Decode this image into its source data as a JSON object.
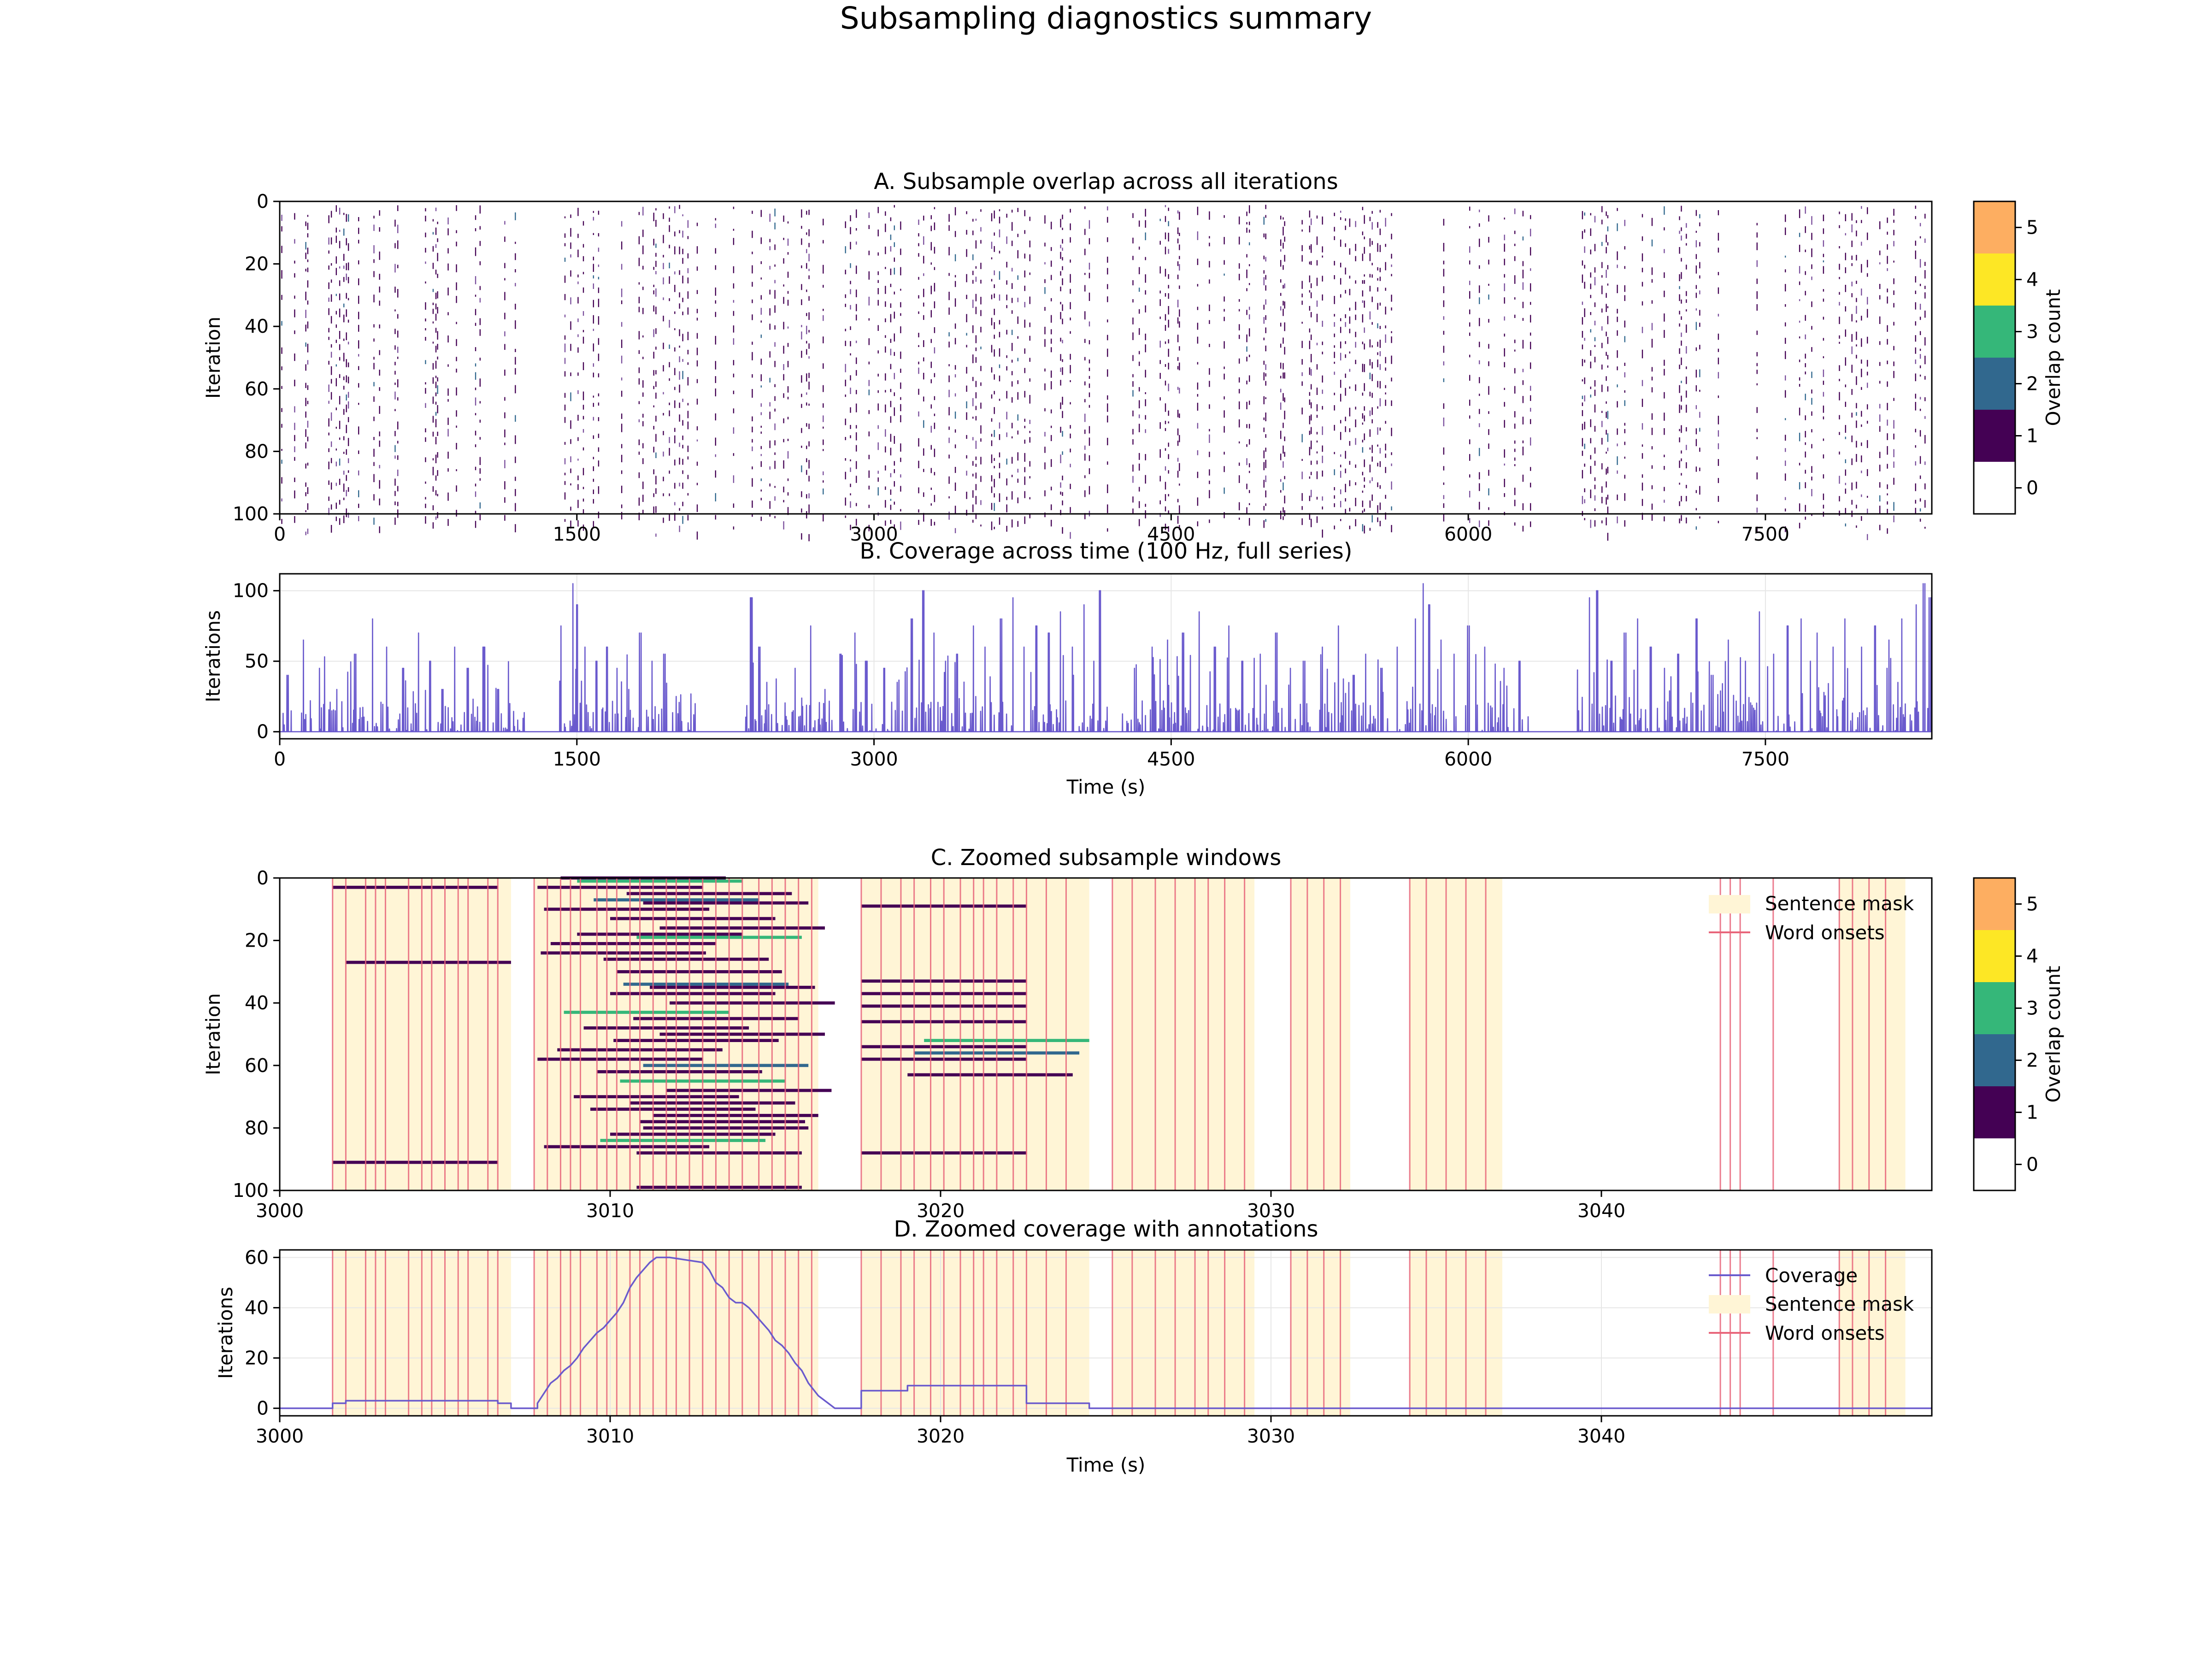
{
  "figure": {
    "suptitle": "Subsampling diagnostics summary"
  },
  "chart_data": [
    {
      "id": "A",
      "type": "heatmap",
      "title": "A. Subsample overlap across all iterations",
      "xlabel": "",
      "ylabel": "Iteration",
      "xlim": [
        0,
        8340
      ],
      "ylim": [
        100,
        0
      ],
      "xticks": [
        "0",
        "1500",
        "3000",
        "4500",
        "6000",
        "7500"
      ],
      "yticks": [
        "0",
        "20",
        "40",
        "60",
        "80",
        "100"
      ],
      "colorbar": {
        "label": "Overlap count",
        "ticks": [
          "0",
          "1",
          "2",
          "3",
          "4",
          "5"
        ],
        "colors": [
          "#ffffff",
          "#440154",
          "#31688e",
          "#35b779",
          "#fde725",
          "#fdae61"
        ]
      },
      "dense_time_ranges_s": [
        [
          0,
          1250
        ],
        [
          1400,
          2100
        ],
        [
          2350,
          4180
        ],
        [
          4250,
          5650
        ],
        [
          5650,
          6320
        ],
        [
          6550,
          8340
        ]
      ],
      "sparse_time_ranges_s": [
        [
          2100,
          2350
        ],
        [
          6320,
          6550
        ]
      ]
    },
    {
      "id": "B",
      "type": "line",
      "title": "B. Coverage across time (100 Hz, full series)",
      "xlabel": "Time (s)",
      "ylabel": "Iterations",
      "xlim": [
        0,
        8340
      ],
      "ylim": [
        -5,
        112
      ],
      "xticks": [
        "0",
        "1500",
        "3000",
        "4500",
        "6000",
        "7500"
      ],
      "yticks": [
        "0",
        "50",
        "100"
      ],
      "color": "#6a5acd",
      "peaks": {
        "x": [
          40,
          120,
          200,
          290,
          380,
          470,
          540,
          620,
          700,
          760,
          820,
          880,
          950,
          1030,
          1100,
          1160,
          1260,
          1420,
          1480,
          1500,
          1540,
          1600,
          1650,
          1700,
          1760,
          1820,
          1880,
          1940,
          2000,
          2150,
          2380,
          2420,
          2460,
          2600,
          2680,
          2750,
          2830,
          2900,
          2960,
          3050,
          3120,
          3190,
          3250,
          3300,
          3360,
          3420,
          3500,
          3560,
          3640,
          3700,
          3760,
          3820,
          3880,
          3940,
          4000,
          4060,
          4110,
          4140,
          4310,
          4400,
          4480,
          4560,
          4640,
          4720,
          4790,
          4860,
          4950,
          5030,
          5100,
          5170,
          5260,
          5340,
          5420,
          5480,
          5560,
          5640,
          5730,
          5770,
          5800,
          5860,
          5930,
          6000,
          6080,
          6180,
          6260,
          6330,
          6610,
          6650,
          6720,
          6790,
          6850,
          6920,
          6990,
          7060,
          7150,
          7230,
          7310,
          7400,
          7470,
          7540,
          7610,
          7680,
          7760,
          7840,
          7900,
          7980,
          8050,
          8120,
          8190,
          8260,
          8300,
          8330
        ],
        "y": [
          40,
          65,
          45,
          30,
          55,
          80,
          60,
          45,
          70,
          50,
          30,
          60,
          45,
          60,
          30,
          20,
          40,
          75,
          105,
          90,
          60,
          50,
          60,
          45,
          30,
          70,
          50,
          55,
          25,
          20,
          95,
          60,
          35,
          45,
          75,
          30,
          55,
          70,
          50,
          45,
          35,
          80,
          100,
          70,
          50,
          55,
          75,
          60,
          80,
          95,
          60,
          75,
          70,
          85,
          60,
          90,
          50,
          100,
          45,
          60,
          65,
          70,
          85,
          60,
          75,
          50,
          55,
          70,
          45,
          50,
          60,
          75,
          40,
          55,
          45,
          60,
          80,
          105,
          90,
          65,
          55,
          75,
          60,
          45,
          50,
          20,
          95,
          100,
          50,
          70,
          80,
          60,
          45,
          55,
          80,
          40,
          65,
          50,
          85,
          55,
          75,
          80,
          70,
          60,
          80,
          60,
          75,
          65,
          80,
          90,
          105,
          95
        ]
      },
      "gaps_s": [
        [
          1250,
          1400
        ],
        [
          2100,
          2350
        ],
        [
          4180,
          4250
        ],
        [
          6320,
          6550
        ]
      ]
    },
    {
      "id": "C",
      "type": "heatmap",
      "title": "C. Zoomed subsample windows",
      "xlabel": "",
      "ylabel": "Iteration",
      "xlim": [
        3000,
        3050
      ],
      "ylim": [
        100,
        0
      ],
      "xticks": [
        "3000",
        "3010",
        "3020",
        "3030",
        "3040"
      ],
      "yticks": [
        "0",
        "20",
        "40",
        "60",
        "80",
        "100"
      ],
      "colorbar": {
        "label": "Overlap count",
        "ticks": [
          "0",
          "1",
          "2",
          "3",
          "4",
          "5"
        ],
        "colors": [
          "#ffffff",
          "#440154",
          "#31688e",
          "#35b779",
          "#fde725",
          "#fdae61"
        ]
      },
      "legend": {
        "position": "upper right",
        "entries": [
          "Sentence mask",
          "Word onsets"
        ]
      },
      "windows": [
        {
          "iter": 3,
          "start": 3001.6,
          "end": 3006.6
        },
        {
          "iter": 27,
          "start": 3002.0,
          "end": 3007.0
        },
        {
          "iter": 91,
          "start": 3001.6,
          "end": 3006.6
        },
        {
          "iter": 0,
          "start": 3008.5,
          "end": 3013.5
        },
        {
          "iter": 1,
          "start": 3009.0,
          "end": 3014.0
        },
        {
          "iter": 3,
          "start": 3007.8,
          "end": 3012.8
        },
        {
          "iter": 5,
          "start": 3010.5,
          "end": 3015.5
        },
        {
          "iter": 7,
          "start": 3009.5,
          "end": 3014.5
        },
        {
          "iter": 8,
          "start": 3011.0,
          "end": 3016.0
        },
        {
          "iter": 10,
          "start": 3008.0,
          "end": 3013.0
        },
        {
          "iter": 13,
          "start": 3010.0,
          "end": 3015.0
        },
        {
          "iter": 16,
          "start": 3011.5,
          "end": 3016.5
        },
        {
          "iter": 18,
          "start": 3009.0,
          "end": 3014.0
        },
        {
          "iter": 19,
          "start": 3010.8,
          "end": 3015.8
        },
        {
          "iter": 21,
          "start": 3008.2,
          "end": 3013.2
        },
        {
          "iter": 24,
          "start": 3007.9,
          "end": 3012.9
        },
        {
          "iter": 26,
          "start": 3009.8,
          "end": 3014.8
        },
        {
          "iter": 30,
          "start": 3010.2,
          "end": 3015.2
        },
        {
          "iter": 34,
          "start": 3010.4,
          "end": 3015.4
        },
        {
          "iter": 35,
          "start": 3011.2,
          "end": 3016.2
        },
        {
          "iter": 37,
          "start": 3010.0,
          "end": 3015.0
        },
        {
          "iter": 40,
          "start": 3011.8,
          "end": 3016.8
        },
        {
          "iter": 43,
          "start": 3008.6,
          "end": 3013.6
        },
        {
          "iter": 45,
          "start": 3010.7,
          "end": 3015.7
        },
        {
          "iter": 48,
          "start": 3009.2,
          "end": 3014.2
        },
        {
          "iter": 50,
          "start": 3011.5,
          "end": 3016.5
        },
        {
          "iter": 52,
          "start": 3010.1,
          "end": 3015.1
        },
        {
          "iter": 55,
          "start": 3008.4,
          "end": 3013.4
        },
        {
          "iter": 58,
          "start": 3007.8,
          "end": 3012.8
        },
        {
          "iter": 60,
          "start": 3011.0,
          "end": 3016.0
        },
        {
          "iter": 62,
          "start": 3009.6,
          "end": 3014.6
        },
        {
          "iter": 65,
          "start": 3010.3,
          "end": 3015.3
        },
        {
          "iter": 68,
          "start": 3011.7,
          "end": 3016.7
        },
        {
          "iter": 70,
          "start": 3008.9,
          "end": 3013.9
        },
        {
          "iter": 72,
          "start": 3010.6,
          "end": 3015.6
        },
        {
          "iter": 74,
          "start": 3009.4,
          "end": 3014.4
        },
        {
          "iter": 76,
          "start": 3011.3,
          "end": 3016.3
        },
        {
          "iter": 78,
          "start": 3010.9,
          "end": 3015.9
        },
        {
          "iter": 80,
          "start": 3011.0,
          "end": 3016.0
        },
        {
          "iter": 82,
          "start": 3010.0,
          "end": 3015.0
        },
        {
          "iter": 84,
          "start": 3009.7,
          "end": 3014.7
        },
        {
          "iter": 86,
          "start": 3008.0,
          "end": 3013.0
        },
        {
          "iter": 88,
          "start": 3010.8,
          "end": 3015.8
        },
        {
          "iter": 99,
          "start": 3010.8,
          "end": 3015.8
        },
        {
          "iter": 9,
          "start": 3017.6,
          "end": 3022.6
        },
        {
          "iter": 33,
          "start": 3017.6,
          "end": 3022.6
        },
        {
          "iter": 37,
          "start": 3017.6,
          "end": 3022.6
        },
        {
          "iter": 41,
          "start": 3017.6,
          "end": 3022.6
        },
        {
          "iter": 46,
          "start": 3017.6,
          "end": 3022.6
        },
        {
          "iter": 52,
          "start": 3019.5,
          "end": 3024.5
        },
        {
          "iter": 54,
          "start": 3017.6,
          "end": 3022.6
        },
        {
          "iter": 56,
          "start": 3019.2,
          "end": 3024.2
        },
        {
          "iter": 58,
          "start": 3017.6,
          "end": 3022.6
        },
        {
          "iter": 63,
          "start": 3019.0,
          "end": 3024.0
        },
        {
          "iter": 88,
          "start": 3017.6,
          "end": 3022.6
        }
      ]
    },
    {
      "id": "D",
      "type": "line",
      "title": "D. Zoomed coverage with annotations",
      "xlabel": "Time (s)",
      "ylabel": "Iterations",
      "xlim": [
        3000,
        3050
      ],
      "ylim": [
        -3,
        63
      ],
      "xticks": [
        "3000",
        "3010",
        "3020",
        "3030",
        "3040"
      ],
      "yticks": [
        "0",
        "20",
        "40",
        "60"
      ],
      "legend": {
        "position": "upper right",
        "entries": [
          "Coverage",
          "Sentence mask",
          "Word onsets"
        ]
      },
      "series": [
        {
          "name": "Coverage",
          "color": "#6a5acd",
          "x": [
            3000,
            3001.6,
            3001.6,
            3002.0,
            3002.0,
            3006.6,
            3006.6,
            3007.0,
            3007.0,
            3007.8,
            3007.8,
            3008.0,
            3008.2,
            3008.4,
            3008.6,
            3008.8,
            3009.0,
            3009.2,
            3009.4,
            3009.6,
            3009.8,
            3010.0,
            3010.2,
            3010.4,
            3010.6,
            3010.8,
            3011.0,
            3011.2,
            3011.4,
            3011.6,
            3011.8,
            3012.8,
            3013.0,
            3013.2,
            3013.4,
            3013.6,
            3013.8,
            3014.0,
            3014.2,
            3014.4,
            3014.6,
            3014.8,
            3015.0,
            3015.2,
            3015.4,
            3015.6,
            3015.8,
            3016.0,
            3016.3,
            3016.6,
            3016.8,
            3017.6,
            3017.6,
            3019.0,
            3019.0,
            3022.6,
            3022.6,
            3024.5,
            3024.5,
            3050
          ],
          "y": [
            0,
            0,
            2,
            2,
            3,
            3,
            2,
            2,
            0,
            0,
            2,
            6,
            10,
            12,
            15,
            17,
            20,
            24,
            27,
            30,
            32,
            35,
            38,
            42,
            48,
            52,
            55,
            58,
            60,
            60,
            60,
            58,
            55,
            50,
            48,
            44,
            42,
            42,
            40,
            37,
            34,
            31,
            27,
            25,
            22,
            18,
            15,
            10,
            5,
            2,
            0,
            0,
            7,
            7,
            9,
            9,
            2,
            2,
            0,
            0
          ]
        }
      ]
    }
  ],
  "annotations": {
    "sentence_mask_color": "#fff5d6",
    "word_onset_color": "#e8657a",
    "sentence_mask_spans_s": [
      [
        3001.6,
        3007.0
      ],
      [
        3007.7,
        3016.3
      ],
      [
        3017.6,
        3024.5
      ],
      [
        3025.2,
        3029.5
      ],
      [
        3030.6,
        3032.4
      ],
      [
        3034.2,
        3037.0
      ],
      [
        3047.2,
        3049.2
      ]
    ],
    "word_onsets_s": [
      3001.6,
      3002.0,
      3002.6,
      3002.9,
      3003.2,
      3003.9,
      3004.3,
      3004.6,
      3005.0,
      3005.4,
      3005.7,
      3006.3,
      3006.6,
      3007.7,
      3008.1,
      3008.5,
      3008.8,
      3009.1,
      3009.6,
      3009.9,
      3010.2,
      3010.6,
      3010.9,
      3011.3,
      3011.7,
      3012.0,
      3012.4,
      3012.8,
      3013.2,
      3013.6,
      3014.0,
      3014.5,
      3014.9,
      3015.3,
      3015.7,
      3016.1,
      3017.6,
      3018.2,
      3018.8,
      3019.2,
      3019.7,
      3020.1,
      3020.6,
      3021.0,
      3021.3,
      3021.7,
      3022.2,
      3022.6,
      3023.2,
      3023.8,
      3025.2,
      3025.8,
      3026.5,
      3027.1,
      3027.7,
      3028.1,
      3028.6,
      3029.2,
      3030.6,
      3031.1,
      3031.6,
      3032.1,
      3034.2,
      3034.7,
      3035.3,
      3035.9,
      3036.5,
      3043.6,
      3043.9,
      3044.2,
      3045.2,
      3047.2,
      3047.6,
      3048.1,
      3048.6
    ]
  }
}
